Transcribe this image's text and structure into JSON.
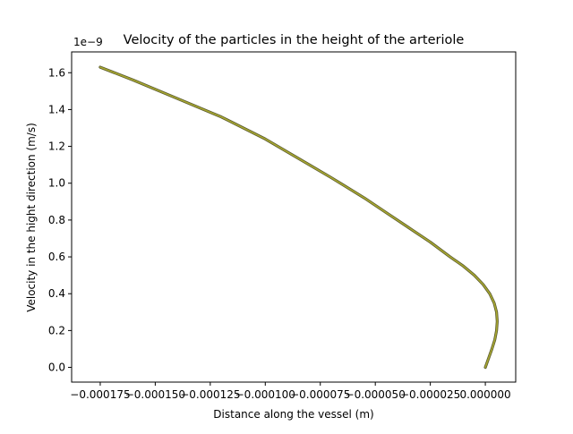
{
  "chart_data": {
    "type": "line",
    "title": "Velocity of the particles in the height of the arteriole",
    "xlabel": "Distance along the vessel (m)",
    "ylabel": "Velocity in the hight direction (m/s)",
    "y_offset_text": "1e−9",
    "xlim": [
      -0.000188,
      1.38e-05
    ],
    "ylim": [
      -0.08,
      1.713
    ],
    "x_ticks": [
      {
        "value": -0.000175,
        "label": "−0.000175"
      },
      {
        "value": -0.00015,
        "label": "−0.000150"
      },
      {
        "value": -0.000125,
        "label": "−0.000125"
      },
      {
        "value": -0.0001,
        "label": "−0.000100"
      },
      {
        "value": -7.5e-05,
        "label": "−0.000075"
      },
      {
        "value": -5e-05,
        "label": "−0.000050"
      },
      {
        "value": -2.5e-05,
        "label": "−0.000025"
      },
      {
        "value": 0.0,
        "label": "0.000000"
      }
    ],
    "y_ticks": [
      {
        "value": 0.0,
        "label": "0.0"
      },
      {
        "value": 0.2,
        "label": "0.2"
      },
      {
        "value": 0.4,
        "label": "0.4"
      },
      {
        "value": 0.6,
        "label": "0.6"
      },
      {
        "value": 0.8,
        "label": "0.8"
      },
      {
        "value": 1.0,
        "label": "1.0"
      },
      {
        "value": 1.2,
        "label": "1.2"
      },
      {
        "value": 1.4,
        "label": "1.4"
      },
      {
        "value": 1.6,
        "label": "1.6"
      }
    ],
    "grid": false,
    "series": [
      {
        "color": "#a8a830",
        "x": [
          0.0,
          1.5e-06,
          3e-06,
          4.3e-06,
          5.1e-06,
          5.4e-06,
          5.1e-06,
          4e-06,
          2e-06,
          -1e-06,
          -5e-06,
          -1e-05,
          -1.6e-05,
          -2.5e-05,
          -3.5e-05,
          -4.5e-05,
          -5.5e-05,
          -7e-05,
          -8e-05,
          -0.0001,
          -0.00012,
          -0.00014,
          -0.00016,
          -0.000175
        ],
        "y": [
          0.0,
          0.05,
          0.1,
          0.15,
          0.2,
          0.25,
          0.3,
          0.35,
          0.4,
          0.45,
          0.5,
          0.55,
          0.6,
          0.68,
          0.76,
          0.84,
          0.92,
          1.03,
          1.1,
          1.24,
          1.36,
          1.46,
          1.56,
          1.63
        ]
      }
    ]
  }
}
